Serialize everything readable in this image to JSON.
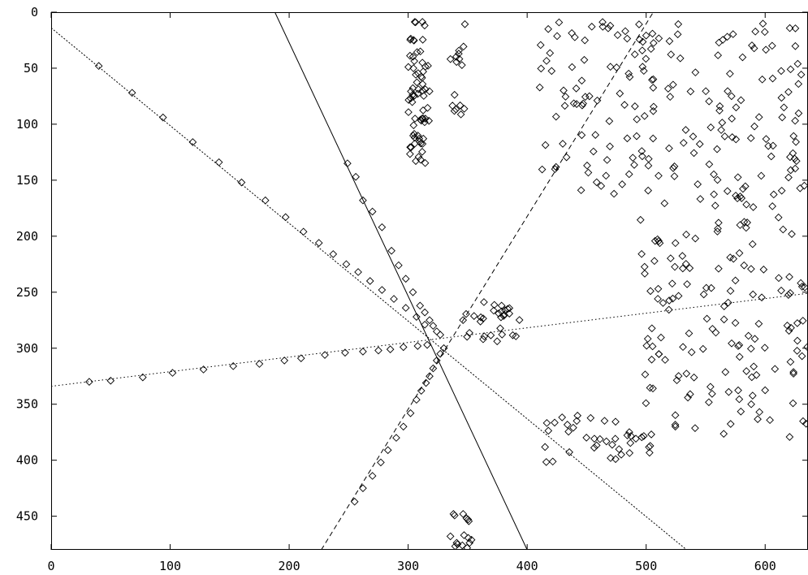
{
  "chart_data": {
    "type": "scatter",
    "title": "",
    "xlabel": "",
    "ylabel": "",
    "xlim": [
      0,
      636
    ],
    "ylim": [
      0,
      480
    ],
    "y_inverted": true,
    "grid": false,
    "marker": "diamond",
    "x_ticks": [
      "0",
      "100",
      "200",
      "300",
      "400",
      "500",
      "600"
    ],
    "y_ticks": [
      "0",
      "50",
      "100",
      "150",
      "200",
      "250",
      "300",
      "350",
      "400",
      "450"
    ],
    "lines": [
      {
        "style": "solid",
        "x": [
          188,
          400
        ],
        "y": [
          0,
          480
        ]
      },
      {
        "style": "dashed",
        "x": [
          227,
          506
        ],
        "y": [
          480,
          0
        ]
      },
      {
        "style": "dotted",
        "x": [
          0,
          636
        ],
        "y": [
          334,
          251
        ]
      },
      {
        "style": "densely-dotted",
        "x": [
          0,
          534
        ],
        "y": [
          14,
          480
        ]
      }
    ],
    "clusters": [
      {
        "x": [
          340,
          395
        ],
        "y": [
          258,
          294
        ],
        "n": 30
      },
      {
        "x": [
          300,
          318
        ],
        "y": [
          8,
          135
        ],
        "n": 70
      },
      {
        "x": [
          335,
          348
        ],
        "y": [
          8,
          92
        ],
        "n": 16
      },
      {
        "x": [
          335,
          355
        ],
        "y": [
          445,
          480
        ],
        "n": 16
      },
      {
        "x": [
          412,
          505
        ],
        "y": [
          360,
          402
        ],
        "n": 40
      },
      {
        "x": [
          410,
          510
        ],
        "y": [
          8,
          165
        ],
        "n": 80
      },
      {
        "x": [
          495,
          636
        ],
        "y": [
          10,
          380
        ],
        "n": 260
      }
    ],
    "points_solid": [
      [
        249,
        135
      ],
      [
        256,
        147
      ],
      [
        262,
        168
      ],
      [
        270,
        178
      ],
      [
        278,
        192
      ],
      [
        286,
        213
      ],
      [
        292,
        226
      ],
      [
        298,
        238
      ],
      [
        304,
        250
      ],
      [
        310,
        262
      ],
      [
        314,
        268
      ],
      [
        318,
        275
      ],
      [
        321,
        280
      ],
      [
        324,
        285
      ],
      [
        327,
        288
      ]
    ],
    "points_dashed": [
      [
        255,
        437
      ],
      [
        262,
        425
      ],
      [
        270,
        414
      ],
      [
        277,
        402
      ],
      [
        283,
        391
      ],
      [
        290,
        380
      ],
      [
        296,
        370
      ],
      [
        302,
        358
      ],
      [
        307,
        346
      ],
      [
        311,
        338
      ],
      [
        315,
        331
      ],
      [
        318,
        325
      ],
      [
        321,
        318
      ],
      [
        324,
        311
      ],
      [
        327,
        305
      ],
      [
        330,
        300
      ]
    ],
    "points_dotted": [
      [
        32,
        330
      ],
      [
        50,
        329
      ],
      [
        77,
        326
      ],
      [
        102,
        322
      ],
      [
        128,
        319
      ],
      [
        153,
        316
      ],
      [
        175,
        314
      ],
      [
        196,
        311
      ],
      [
        210,
        309
      ],
      [
        230,
        306
      ],
      [
        247,
        304
      ],
      [
        262,
        303
      ],
      [
        275,
        302
      ],
      [
        285,
        301
      ],
      [
        296,
        299
      ],
      [
        308,
        298
      ],
      [
        316,
        297
      ]
    ],
    "points_densely_dotted": [
      [
        40,
        48
      ],
      [
        68,
        72
      ],
      [
        94,
        94
      ],
      [
        119,
        116
      ],
      [
        141,
        134
      ],
      [
        160,
        152
      ],
      [
        180,
        168
      ],
      [
        197,
        183
      ],
      [
        212,
        196
      ],
      [
        225,
        206
      ],
      [
        237,
        216
      ],
      [
        248,
        225
      ],
      [
        258,
        232
      ],
      [
        268,
        240
      ],
      [
        278,
        248
      ],
      [
        288,
        256
      ],
      [
        298,
        264
      ],
      [
        307,
        272
      ],
      [
        314,
        279
      ]
    ]
  }
}
